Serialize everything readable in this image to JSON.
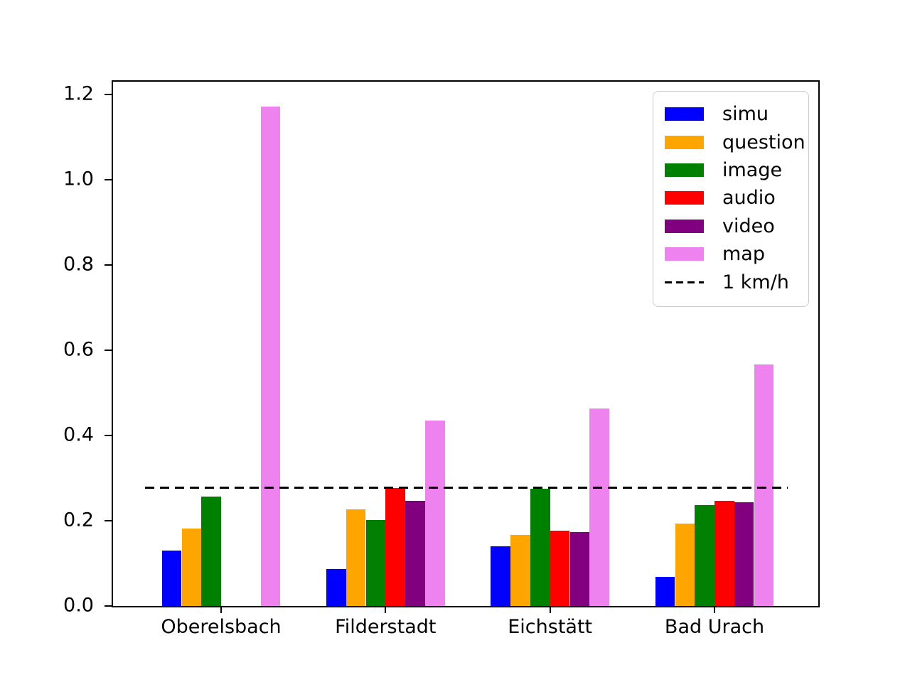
{
  "figure": {
    "background": "#ffffff",
    "axis_color": "#000000"
  },
  "chart_data": {
    "type": "bar",
    "title": "",
    "xlabel": "",
    "ylabel": "",
    "grid": false,
    "legend_position": "upper right",
    "categories": [
      "Oberelsbach",
      "Filderstadt",
      "Eichstätt",
      "Bad Urach"
    ],
    "series": [
      {
        "name": "simu",
        "color": "#0000ff",
        "values": [
          0.13,
          0.086,
          0.14,
          0.069
        ]
      },
      {
        "name": "question",
        "color": "#ffa500",
        "values": [
          0.181,
          0.226,
          0.166,
          0.193
        ]
      },
      {
        "name": "image",
        "color": "#008000",
        "values": [
          0.257,
          0.201,
          0.275,
          0.236
        ]
      },
      {
        "name": "audio",
        "color": "#ff0000",
        "values": [
          0.0,
          0.276,
          0.176,
          0.246
        ]
      },
      {
        "name": "video",
        "color": "#800080",
        "values": [
          0.0,
          0.246,
          0.174,
          0.244
        ]
      },
      {
        "name": "map",
        "color": "#ee82ee",
        "values": [
          1.172,
          0.435,
          0.464,
          0.567
        ]
      }
    ],
    "reference_line": {
      "label": "1 km/h",
      "value": 0.278,
      "color": "#000000",
      "style": "dashed"
    },
    "ytick_labels": [
      "0.0",
      "0.2",
      "0.4",
      "0.6",
      "0.8",
      "1.0",
      "1.2"
    ],
    "ytick_values": [
      0.0,
      0.2,
      0.4,
      0.6,
      0.8,
      1.0,
      1.2
    ],
    "ylim": [
      0,
      1.2305
    ],
    "legend_entries": [
      "simu",
      "question",
      "image",
      "audio",
      "video",
      "map",
      "1 km/h"
    ]
  }
}
